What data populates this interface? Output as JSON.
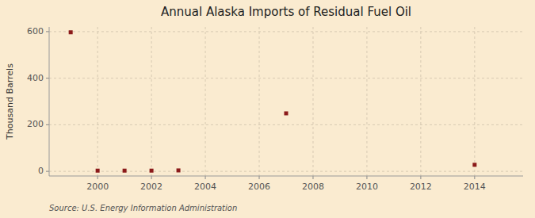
{
  "chart_data": {
    "type": "scatter",
    "title": "Annual Alaska Imports of Residual Fuel Oil",
    "ylabel": "Thousand Barrels",
    "source": "Source: U.S. Energy Information Administration",
    "x": [
      1999,
      2000,
      2001,
      2002,
      2003,
      2007,
      2014
    ],
    "values": [
      597,
      3,
      3,
      3,
      4,
      249,
      28
    ],
    "color": "#8b1a1a",
    "marker": "square",
    "xlim": [
      1998.2,
      2015.8
    ],
    "ylim": [
      -20,
      620
    ],
    "xticks": [
      2000,
      2002,
      2004,
      2006,
      2008,
      2010,
      2012,
      2014
    ],
    "yticks": [
      0,
      200,
      400,
      600
    ],
    "grid": true
  }
}
